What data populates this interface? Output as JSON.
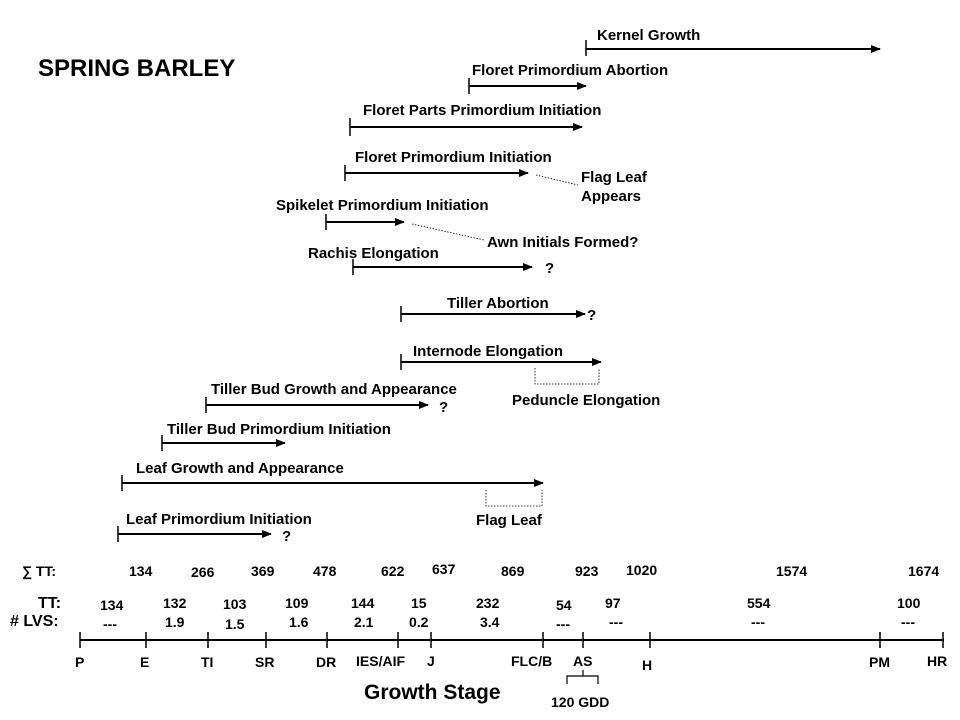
{
  "title": "SPRING BARLEY",
  "processes": [
    {
      "id": "kernel-growth",
      "label": "Kernel Growth",
      "question": ""
    },
    {
      "id": "floret-primordium-abortion",
      "label": "Floret Primordium Abortion",
      "question": ""
    },
    {
      "id": "floret-parts-primordium-initiation",
      "label": "Floret Parts Primordium Initiation",
      "question": ""
    },
    {
      "id": "floret-primordium-initiation",
      "label": "Floret Primordium Initiation",
      "question": ""
    },
    {
      "id": "spikelet-primordium-initiation",
      "label": "Spikelet Primordium Initiation",
      "question": ""
    },
    {
      "id": "rachis-elongation",
      "label": "Rachis Elongation",
      "question": "?"
    },
    {
      "id": "tiller-abortion",
      "label": "Tiller Abortion",
      "question": "?"
    },
    {
      "id": "internode-elongation",
      "label": "Internode Elongation",
      "question": ""
    },
    {
      "id": "tiller-bud-growth-and-appearance",
      "label": "Tiller Bud Growth and Appearance",
      "question": "?"
    },
    {
      "id": "tiller-bud-primordium-initiation",
      "label": "Tiller Bud Primordium Initiation",
      "question": ""
    },
    {
      "id": "leaf-growth-and-appearance",
      "label": "Leaf Growth and Appearance",
      "question": ""
    },
    {
      "id": "leaf-primordium-initiation",
      "label": "Leaf Primordium Initiation",
      "question": "?"
    }
  ],
  "notes": {
    "flag_leaf_appears_1": "Flag Leaf",
    "flag_leaf_appears_2": "Appears",
    "awn_initials": "Awn Initials Formed?",
    "peduncle_elongation": "Peduncle Elongation",
    "flag_leaf": "Flag Leaf"
  },
  "rows": {
    "cum_tt_label": "∑ TT:",
    "tt_label": "TT:",
    "lvs_label": "# LVS:"
  },
  "cum_tt": [
    "134",
    "266",
    "369",
    "478",
    "622",
    "637",
    "869",
    "923",
    "1020",
    "1574",
    "1674"
  ],
  "tt": [
    "134",
    "132",
    "103",
    "109",
    "144",
    "15",
    "232",
    "54",
    "97",
    "554",
    "100"
  ],
  "lvs": [
    "---",
    "1.9",
    "1.5",
    "1.6",
    "2.1",
    "0.2",
    "3.4",
    "---",
    "---",
    "---",
    "---"
  ],
  "stages": [
    "P",
    "E",
    "TI",
    "SR",
    "DR",
    "IES/AIF",
    "J",
    "FLC/B",
    "AS",
    "H",
    "PM",
    "HR"
  ],
  "gdd_label": "120 GDD",
  "axis_title": "Growth Stage"
}
